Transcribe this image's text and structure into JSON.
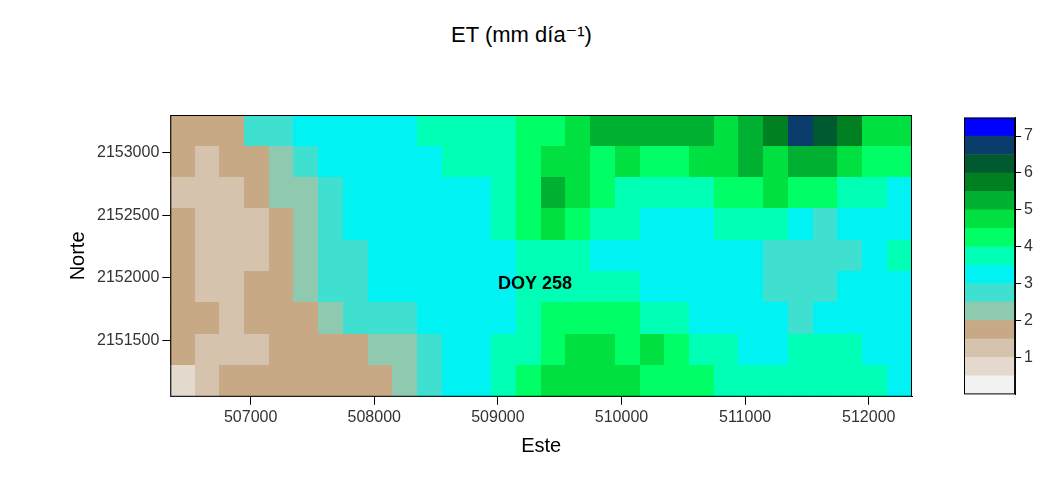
{
  "chart_data": {
    "type": "heatmap",
    "title": "ET (mm día⁻¹)",
    "x_label": "Este",
    "y_label": "Norte",
    "xlim": [
      506350,
      512350
    ],
    "ylim": [
      2151050,
      2153300
    ],
    "xticks": [
      507000,
      508000,
      509000,
      510000,
      511000,
      512000
    ],
    "yticks": [
      2151500,
      2152000,
      2152500,
      2153000
    ],
    "grid": false,
    "cell_x": [
      506450,
      506650,
      506850,
      507050,
      507250,
      507450,
      507650,
      507850,
      508050,
      508250,
      508450,
      508650,
      508850,
      509050,
      509250,
      509450,
      509650,
      509850,
      510050,
      510250,
      510450,
      510650,
      510850,
      511050,
      511250,
      511450,
      511650,
      511850,
      512050,
      512250
    ],
    "cell_y": [
      2153175,
      2152925,
      2152675,
      2152425,
      2152175,
      2151925,
      2151675,
      2151425,
      2151175
    ],
    "cells": [
      [
        1.6,
        1.5,
        1.8,
        2.6,
        2.9,
        3.0,
        3.1,
        3.2,
        3.3,
        3.4,
        3.5,
        3.6,
        3.7,
        3.9,
        4.1,
        4.3,
        4.6,
        5.0,
        5.3,
        5.1,
        5.4,
        5.0,
        4.8,
        5.2,
        5.6,
        6.8,
        6.4,
        5.5,
        4.8,
        4.5
      ],
      [
        1.5,
        1.3,
        1.6,
        1.9,
        2.3,
        2.8,
        3.0,
        3.1,
        3.2,
        3.3,
        3.4,
        3.5,
        3.6,
        3.8,
        4.2,
        4.9,
        4.8,
        4.3,
        4.6,
        4.4,
        4.2,
        4.5,
        4.7,
        5.0,
        4.9,
        5.3,
        5.0,
        4.6,
        4.3,
        4.0
      ],
      [
        1.4,
        1.2,
        1.1,
        1.6,
        2.0,
        2.4,
        2.8,
        3.0,
        3.1,
        3.2,
        3.2,
        3.3,
        3.4,
        3.7,
        4.3,
        5.0,
        4.6,
        4.0,
        3.9,
        3.8,
        3.7,
        3.9,
        4.1,
        4.4,
        4.6,
        4.3,
        4.0,
        3.7,
        3.5,
        3.4
      ],
      [
        1.5,
        1.2,
        1.1,
        1.4,
        1.8,
        2.3,
        2.8,
        3.0,
        3.0,
        3.1,
        3.2,
        3.3,
        3.4,
        3.6,
        4.0,
        4.6,
        4.2,
        3.7,
        3.5,
        3.4,
        3.3,
        3.4,
        3.6,
        3.8,
        3.5,
        3.2,
        2.8,
        3.1,
        3.3,
        3.4
      ],
      [
        1.6,
        1.3,
        1.2,
        1.4,
        1.7,
        2.2,
        2.7,
        2.9,
        3.0,
        3.0,
        3.1,
        3.2,
        3.3,
        3.4,
        3.6,
        3.8,
        3.6,
        3.4,
        3.3,
        3.3,
        3.2,
        3.3,
        3.4,
        3.3,
        2.9,
        2.6,
        2.5,
        2.9,
        3.3,
        3.5
      ],
      [
        1.7,
        1.4,
        1.3,
        1.5,
        1.7,
        2.0,
        2.5,
        2.8,
        3.0,
        3.0,
        3.1,
        3.2,
        3.2,
        3.3,
        3.5,
        3.7,
        3.9,
        3.8,
        3.6,
        3.4,
        3.3,
        3.2,
        3.1,
        3.0,
        2.8,
        2.6,
        2.7,
        3.0,
        3.2,
        3.4
      ],
      [
        1.8,
        1.5,
        1.4,
        1.5,
        1.8,
        1.9,
        2.2,
        2.5,
        2.6,
        2.8,
        3.0,
        3.1,
        3.2,
        3.3,
        3.6,
        4.0,
        4.3,
        4.2,
        4.0,
        3.7,
        3.5,
        3.3,
        3.2,
        3.1,
        3.0,
        2.9,
        3.0,
        3.2,
        3.3,
        3.4
      ],
      [
        1.7,
        1.4,
        1.3,
        1.4,
        1.6,
        1.7,
        1.8,
        1.9,
        2.0,
        2.3,
        2.8,
        3.1,
        3.3,
        3.5,
        3.9,
        4.4,
        4.8,
        4.6,
        4.4,
        4.5,
        4.3,
        3.9,
        3.6,
        3.4,
        3.3,
        3.5,
        3.7,
        3.6,
        3.4,
        3.3
      ],
      [
        0.6,
        1.3,
        1.5,
        1.6,
        1.7,
        1.8,
        1.7,
        1.8,
        1.9,
        2.2,
        2.7,
        3.1,
        3.3,
        3.6,
        4.0,
        4.5,
        4.9,
        4.7,
        4.5,
        4.3,
        4.2,
        4.0,
        3.8,
        3.6,
        3.5,
        3.7,
        3.8,
        3.7,
        3.5,
        3.4
      ]
    ],
    "colorbar": {
      "lim": [
        0,
        7.5
      ],
      "ticks": [
        1,
        2,
        3,
        4,
        5,
        6,
        7
      ],
      "breaks": [
        0,
        0.5,
        1,
        1.5,
        2,
        2.5,
        3,
        3.5,
        4,
        4.5,
        5,
        5.5,
        6,
        6.5,
        7,
        7.5
      ],
      "colors": [
        "#f2f2f2",
        "#e3d9cd",
        "#d6c3ad",
        "#c8a986",
        "#8ec9b0",
        "#40e0d0",
        "#00f2f2",
        "#00ffb4",
        "#00ff66",
        "#00e040",
        "#00b030",
        "#008020",
        "#005a30",
        "#0a3d6c",
        "#0000ff"
      ]
    },
    "annotations": [
      {
        "text": "DOY 258",
        "x": 509300,
        "y": 2151950
      }
    ]
  }
}
